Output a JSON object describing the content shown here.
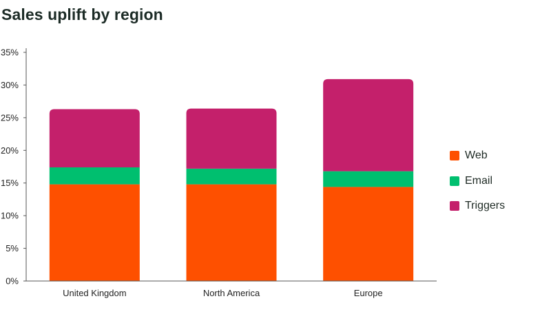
{
  "title": "Sales uplift by region",
  "chart_data": {
    "type": "bar",
    "stacked": true,
    "title": "Sales uplift by region",
    "xlabel": "",
    "ylabel": "",
    "categories": [
      "United Kingdom",
      "North America",
      "Europe"
    ],
    "series": [
      {
        "name": "Web",
        "color": "#fe5000",
        "values": [
          14.8,
          14.8,
          14.4
        ]
      },
      {
        "name": "Email",
        "color": "#00bf6f",
        "values": [
          2.6,
          2.4,
          2.4
        ]
      },
      {
        "name": "Triggers",
        "color": "#c4206b",
        "values": [
          8.9,
          9.2,
          14.1
        ]
      }
    ],
    "ylim": [
      0,
      35
    ],
    "yticks": [
      "0%",
      "5%",
      "10%",
      "15%",
      "20%",
      "25%",
      "30%",
      "35%"
    ],
    "ytick_values": [
      0,
      5,
      10,
      15,
      20,
      25,
      30,
      35
    ],
    "grid": false,
    "legend_position": "right"
  }
}
